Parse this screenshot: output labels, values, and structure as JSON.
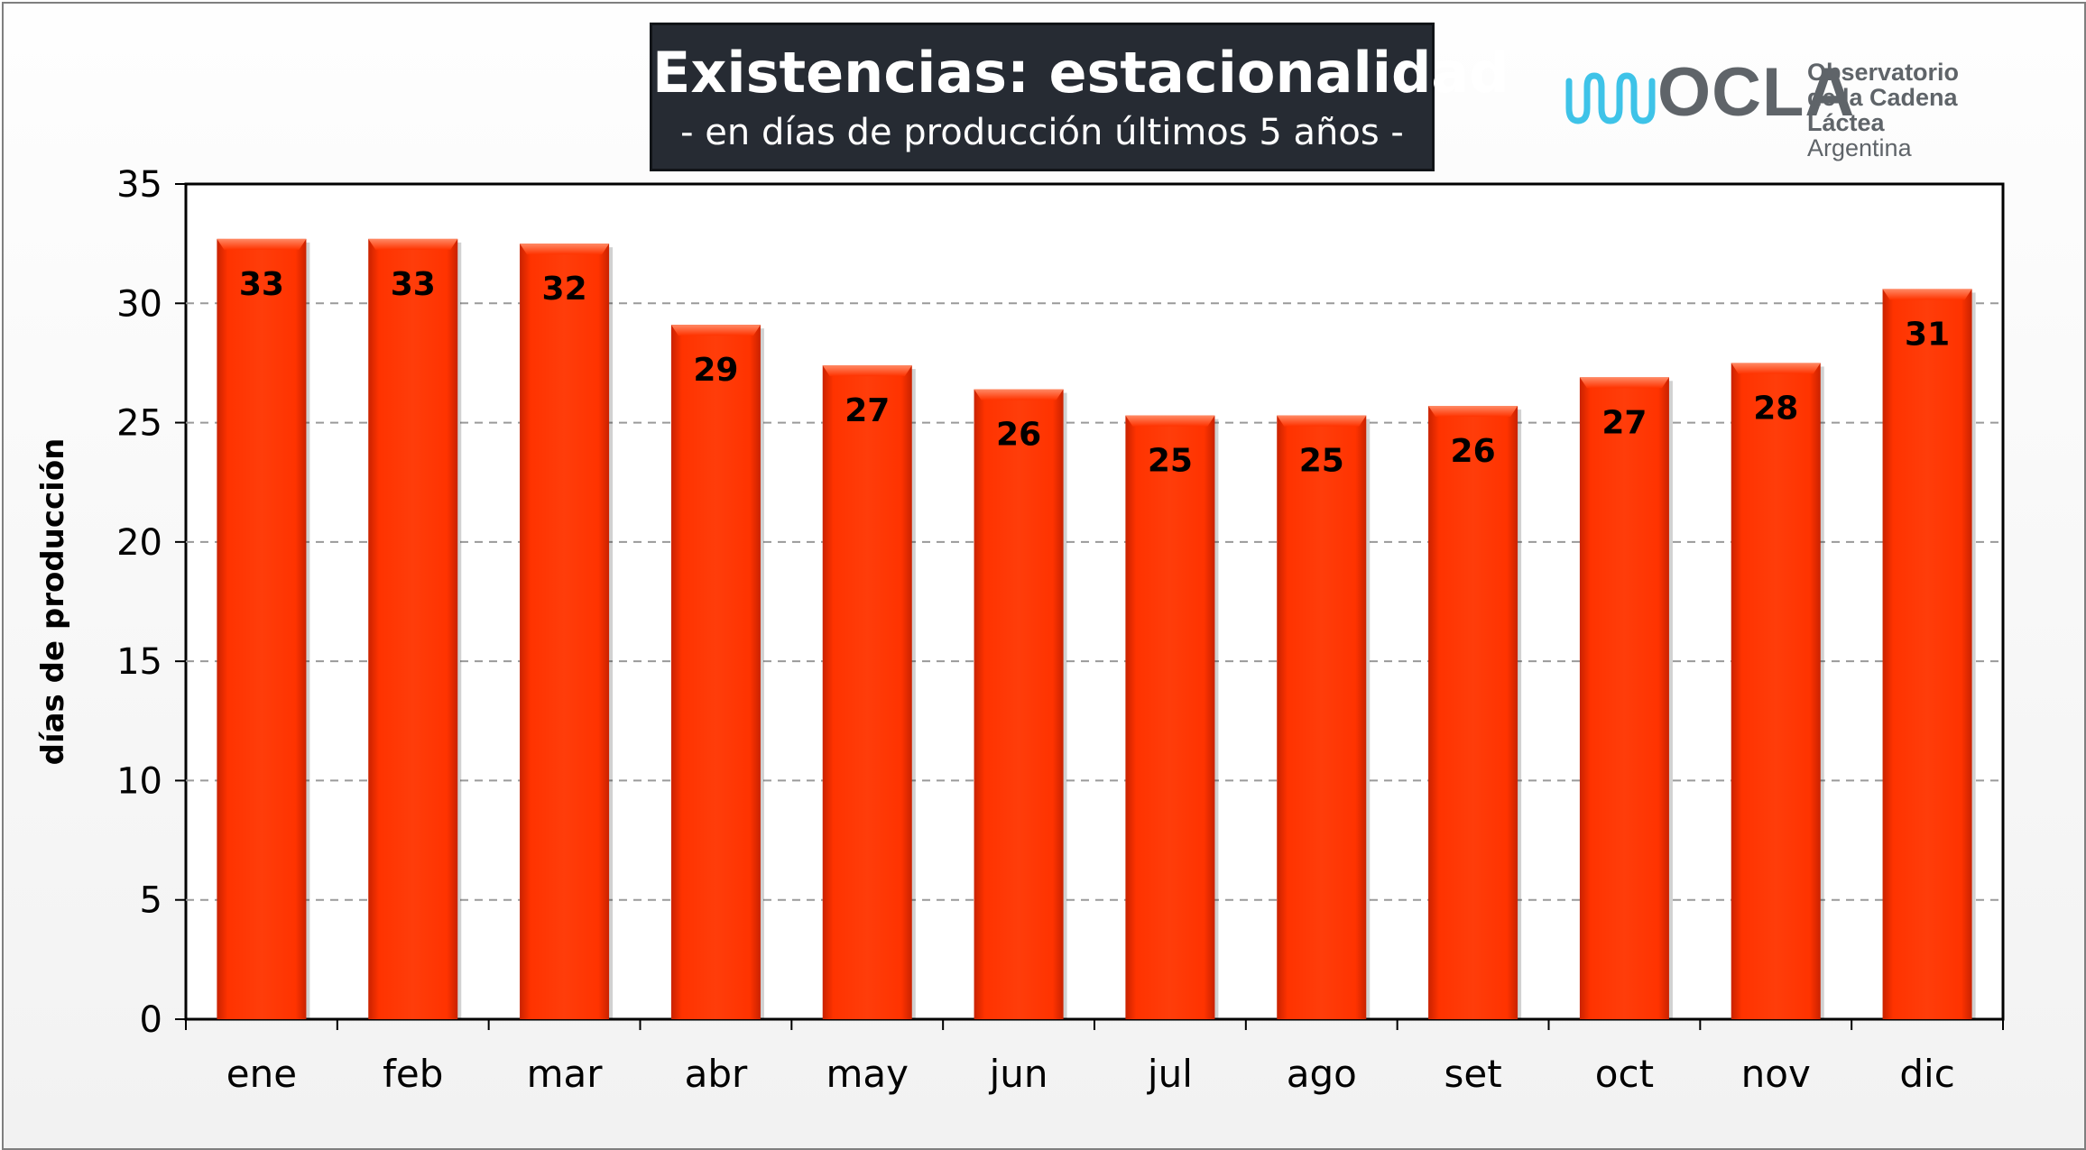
{
  "chart_data": {
    "type": "bar",
    "title": "Existencias: estacionalidad",
    "subtitle": "- en días de producción últimos 5 años -",
    "xlabel": "",
    "ylabel": "días de producción",
    "categories": [
      "ene",
      "feb",
      "mar",
      "abr",
      "may",
      "jun",
      "jul",
      "ago",
      "set",
      "oct",
      "nov",
      "dic"
    ],
    "values": [
      32.7,
      32.7,
      32.5,
      29.1,
      27.4,
      26.4,
      25.3,
      25.3,
      25.7,
      26.9,
      27.5,
      30.6
    ],
    "data_labels": [
      "33",
      "33",
      "32",
      "29",
      "27",
      "26",
      "25",
      "25",
      "26",
      "27",
      "28",
      "31"
    ],
    "ylim": [
      0,
      35
    ],
    "yticks": [
      0,
      5,
      10,
      15,
      20,
      25,
      30,
      35
    ],
    "ytick_labels": [
      "0",
      "5",
      "10",
      "15",
      "20",
      "25",
      "30",
      "35"
    ],
    "grid": true,
    "legend": "none",
    "bar_color": "#ff3300",
    "bar_color_light": "#ff6a3d",
    "bar_color_dark": "#c92200"
  },
  "logo": {
    "wordmark": "OCLA",
    "line1": "Observatorio",
    "line2": "de la Cadena Láctea",
    "line3": "Argentina",
    "text_color": "#5f6469",
    "wave_color": "#3ec3e8"
  }
}
